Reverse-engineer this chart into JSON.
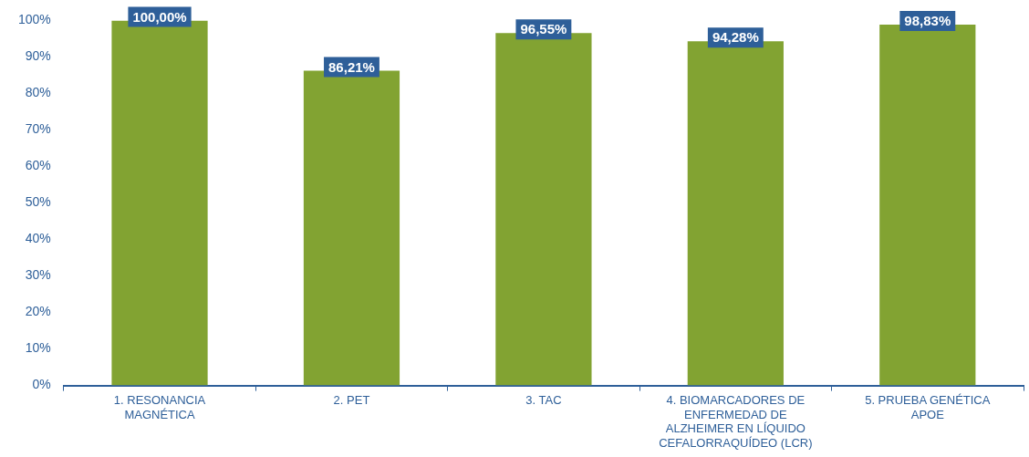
{
  "chart_data": {
    "type": "bar",
    "categories": [
      "1. RESONANCIA MAGNÉTICA",
      "2. PET",
      "3. TAC",
      "4. BIOMARCADORES DE ENFERMEDAD DE ALZHEIMER EN LÍQUIDO CEFALORRAQUÍDEO (LCR)",
      "5. PRUEBA GENÉTICA APOE"
    ],
    "values": [
      100,
      86.21,
      96.55,
      94.28,
      98.83
    ],
    "value_labels": [
      "100,00%",
      "86,21%",
      "96,55%",
      "94,28%",
      "98,83%"
    ],
    "color": "#82a332",
    "ylim": [
      0,
      100
    ],
    "yticks": [
      {
        "value": 0,
        "label": "0%"
      },
      {
        "value": 10,
        "label": "10%"
      },
      {
        "value": 20,
        "label": "20%"
      },
      {
        "value": 30,
        "label": "30%"
      },
      {
        "value": 40,
        "label": "40%"
      },
      {
        "value": 50,
        "label": "50%"
      },
      {
        "value": 60,
        "label": "60%"
      },
      {
        "value": 70,
        "label": "70%"
      },
      {
        "value": 80,
        "label": "80%"
      },
      {
        "value": 90,
        "label": "90%"
      },
      {
        "value": 100,
        "label": "100%"
      }
    ],
    "grid": false,
    "legend": false
  }
}
